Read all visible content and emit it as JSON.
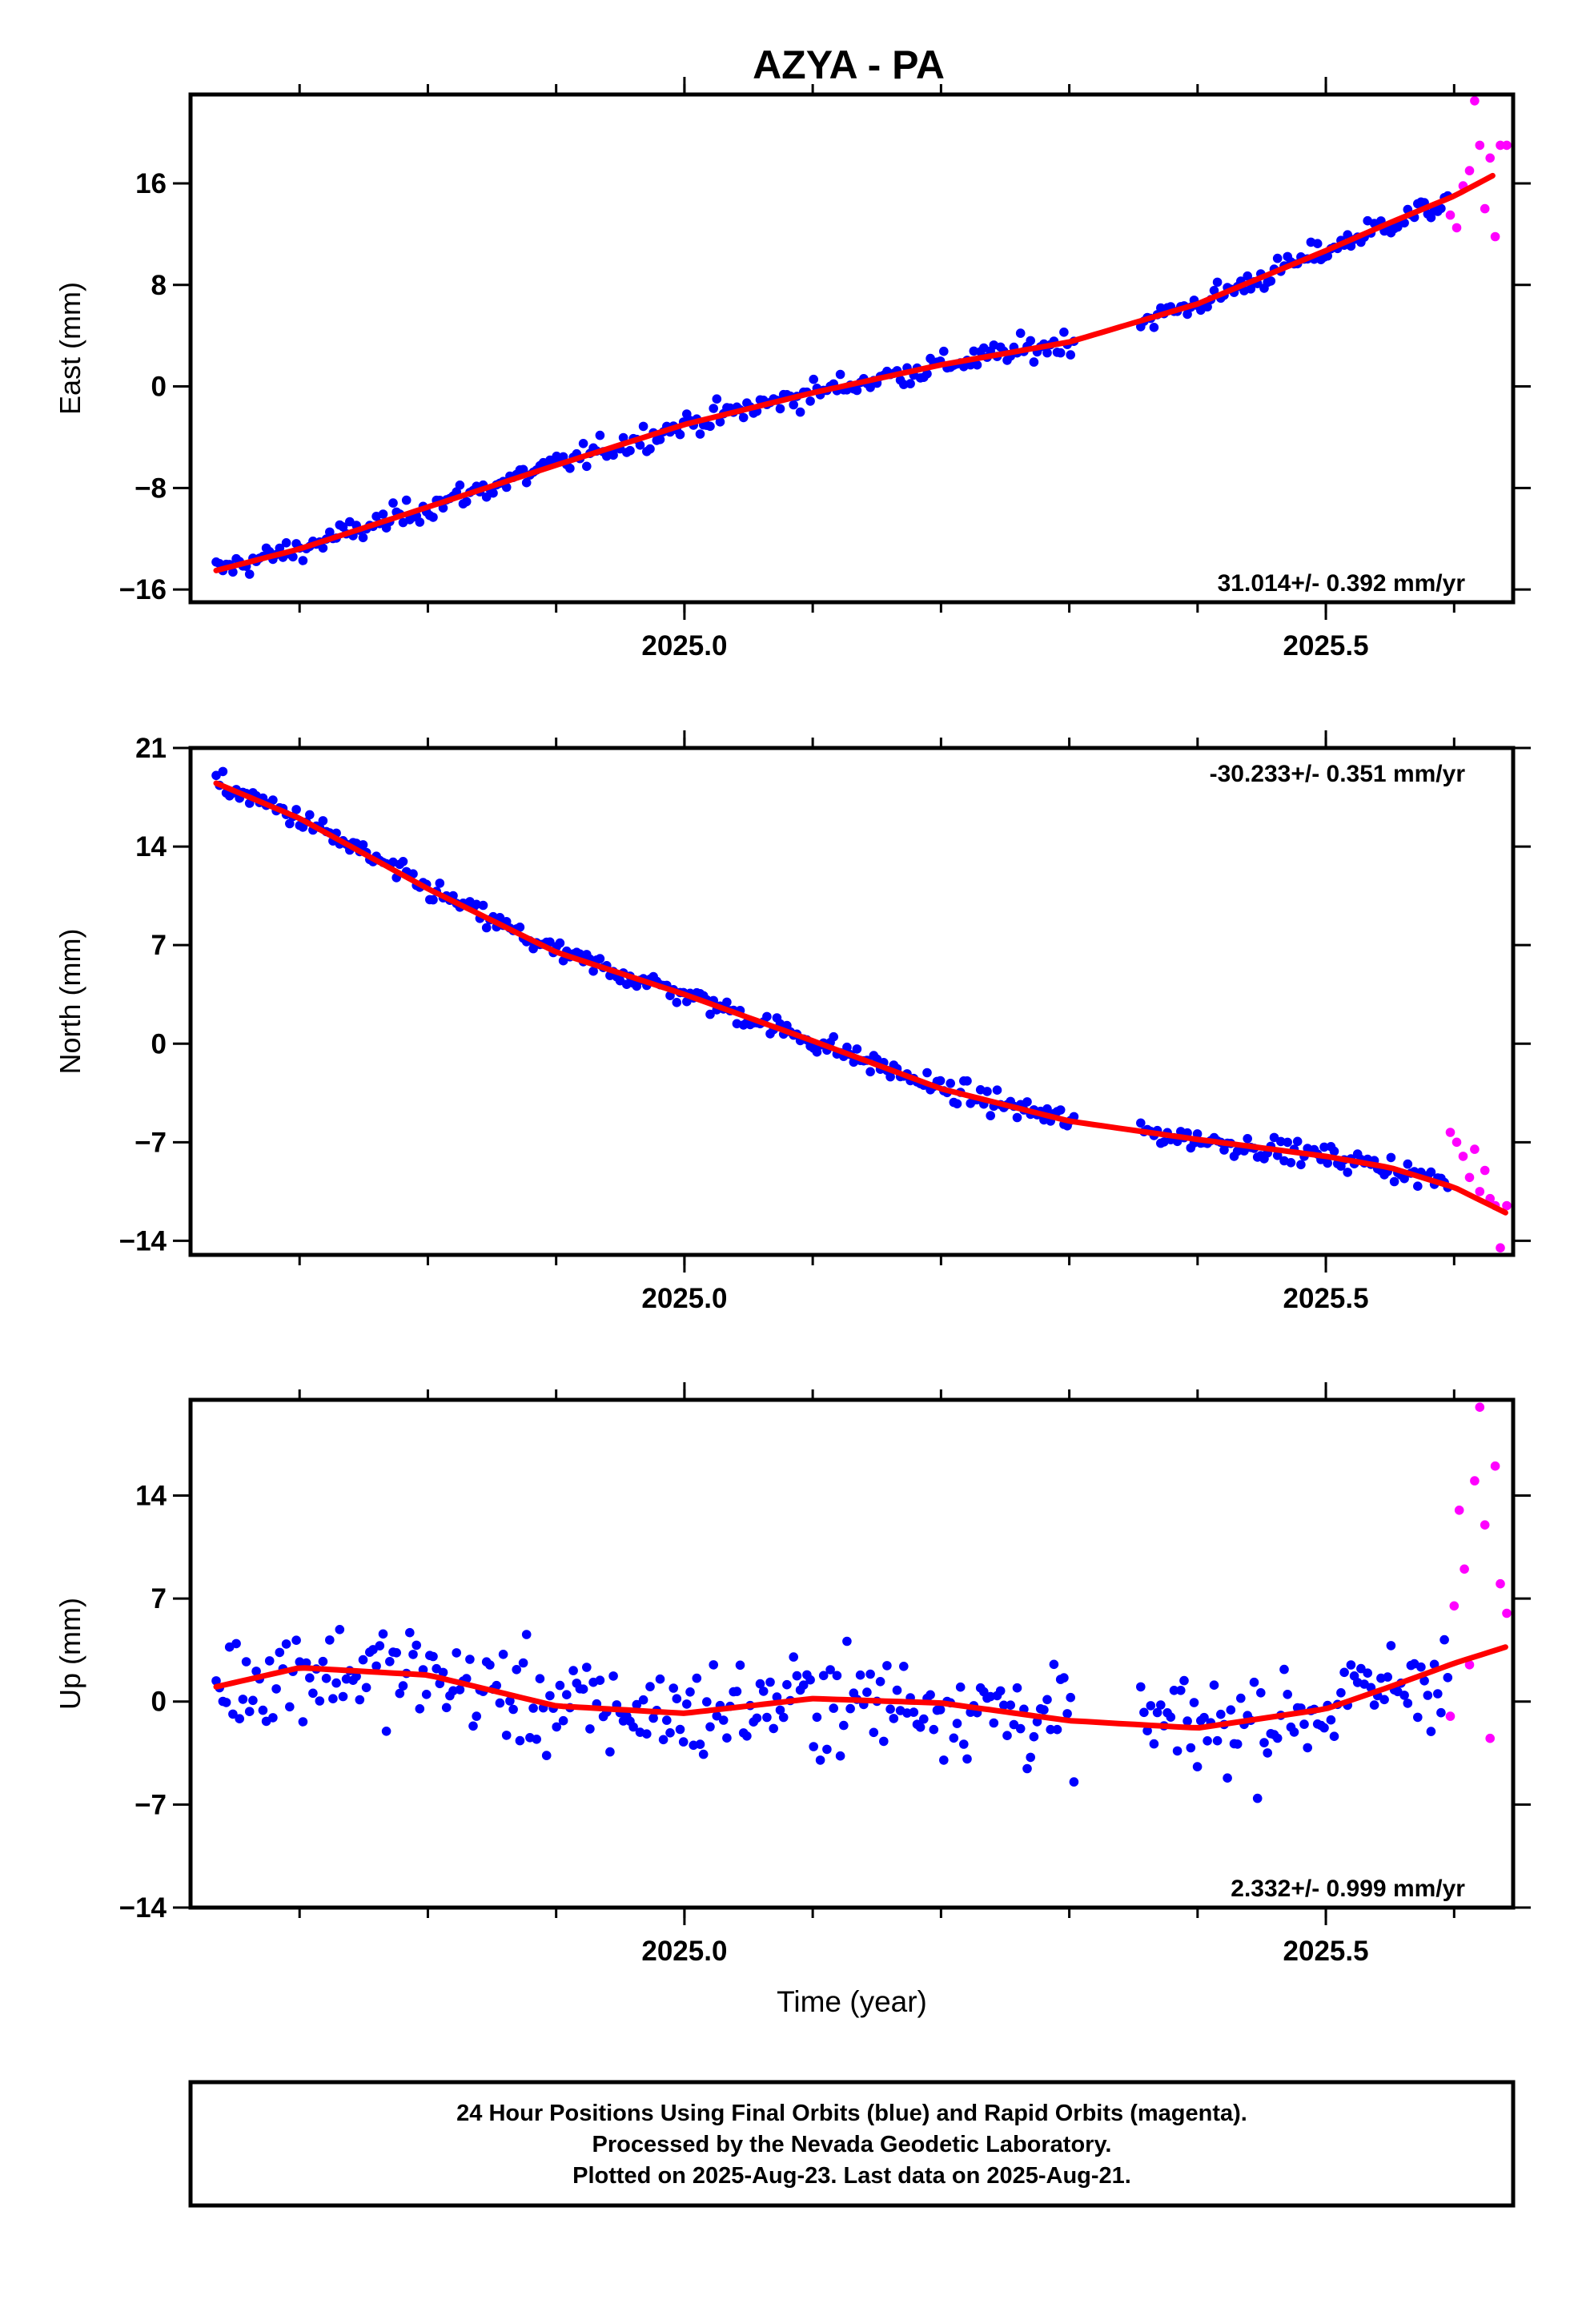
{
  "title": "AZYA - PA",
  "colors": {
    "final": "#0000ff",
    "rapid": "#ff00ff",
    "fit": "#ff0000",
    "frame": "#000000"
  },
  "chart_data": [
    {
      "type": "scatter",
      "component": "East",
      "ylabel": "East (mm)",
      "xlabel": "",
      "xlim": [
        2024.615,
        2025.646
      ],
      "ylim": [
        -17.0,
        23.0
      ],
      "yticks": [
        -16,
        -8,
        0,
        8,
        16
      ],
      "ytick_labels": [
        "−16",
        "−8",
        "0",
        "8",
        "16"
      ],
      "xticks": [
        2025.0,
        2025.5
      ],
      "xtick_labels": [
        "2025.0",
        "2025.5"
      ],
      "rate_label": "31.014+/- 0.392 mm/yr",
      "rate_position": "bottom-right",
      "fit": {
        "x": [
          2024.635,
          2024.7,
          2024.8,
          2024.9,
          2025.0,
          2025.1,
          2025.2,
          2025.3,
          2025.4,
          2025.5,
          2025.55,
          2025.6,
          2025.63
        ],
        "y": [
          -14.5,
          -12.8,
          -9.5,
          -6.2,
          -3.0,
          -0.5,
          1.7,
          3.5,
          6.5,
          10.7,
          12.9,
          15.0,
          16.6
        ]
      },
      "final_anchors": {
        "x": [
          2024.635,
          2024.7,
          2024.8,
          2024.9,
          2025.0,
          2025.1,
          2025.2,
          2025.3,
          2025.4,
          2025.5,
          2025.55,
          2025.595
        ],
        "y": [
          -14.5,
          -12.8,
          -9.5,
          -6.2,
          -3.0,
          -0.5,
          1.7,
          3.5,
          6.5,
          10.7,
          12.9,
          14.5
        ]
      },
      "final_noise": 1.0,
      "rapid": {
        "x": [
          2025.597,
          2025.602,
          2025.607,
          2025.612,
          2025.616,
          2025.62,
          2025.624,
          2025.628,
          2025.632,
          2025.636,
          2025.641
        ],
        "y": [
          13.5,
          12.5,
          15.8,
          17.0,
          22.5,
          19.0,
          14.0,
          18.0,
          11.8,
          19.0,
          19.0
        ]
      }
    },
    {
      "type": "scatter",
      "component": "North",
      "ylabel": "North (mm)",
      "xlabel": "",
      "xlim": [
        2024.615,
        2025.646
      ],
      "ylim": [
        -15.0,
        21.0
      ],
      "yticks": [
        -14,
        -7,
        0,
        7,
        14,
        21
      ],
      "ytick_labels": [
        "−14",
        "−7",
        "0",
        "7",
        "14",
        "21"
      ],
      "xticks": [
        2025.0,
        2025.5
      ],
      "xtick_labels": [
        "2025.0",
        "2025.5"
      ],
      "rate_label": "-30.233+/- 0.351 mm/yr",
      "rate_position": "top-right",
      "fit": {
        "x": [
          2024.635,
          2024.7,
          2024.8,
          2024.9,
          2025.0,
          2025.1,
          2025.2,
          2025.3,
          2025.4,
          2025.5,
          2025.55,
          2025.6,
          2025.64
        ],
        "y": [
          18.5,
          16.0,
          11.0,
          6.5,
          3.5,
          0.2,
          -3.2,
          -5.5,
          -6.8,
          -8.0,
          -8.8,
          -10.2,
          -12.0
        ]
      },
      "final_anchors": {
        "x": [
          2024.635,
          2024.7,
          2024.8,
          2024.9,
          2025.0,
          2025.1,
          2025.2,
          2025.3,
          2025.4,
          2025.5,
          2025.55,
          2025.595
        ],
        "y": [
          18.5,
          16.0,
          11.0,
          6.5,
          3.5,
          0.2,
          -3.2,
          -5.5,
          -6.8,
          -8.0,
          -8.8,
          -10.0
        ]
      },
      "final_noise": 0.8,
      "rapid": {
        "x": [
          2025.597,
          2025.602,
          2025.607,
          2025.612,
          2025.616,
          2025.62,
          2025.624,
          2025.628,
          2025.632,
          2025.636,
          2025.641
        ],
        "y": [
          -6.3,
          -7.0,
          -8.0,
          -9.5,
          -7.5,
          -10.5,
          -9.0,
          -11.0,
          -11.5,
          -14.5,
          -11.5
        ]
      }
    },
    {
      "type": "scatter",
      "component": "Up",
      "ylabel": "Up (mm)",
      "xlabel": "Time (year)",
      "xlim": [
        2024.615,
        2025.646
      ],
      "ylim": [
        -14.0,
        20.5
      ],
      "yticks": [
        -14,
        -7,
        0,
        7,
        14
      ],
      "ytick_labels": [
        "−14",
        "−7",
        "0",
        "7",
        "14"
      ],
      "xticks": [
        2025.0,
        2025.5
      ],
      "xtick_labels": [
        "2025.0",
        "2025.5"
      ],
      "rate_label": "2.332+/- 0.999 mm/yr",
      "rate_position": "bottom-right",
      "fit": {
        "x": [
          2024.635,
          2024.7,
          2024.8,
          2024.9,
          2025.0,
          2025.1,
          2025.2,
          2025.3,
          2025.4,
          2025.5,
          2025.55,
          2025.6,
          2025.64
        ],
        "y": [
          1.0,
          2.3,
          1.8,
          -0.3,
          -0.8,
          0.2,
          -0.1,
          -1.3,
          -1.8,
          -0.5,
          1.0,
          2.6,
          3.7
        ]
      },
      "final_anchors": {
        "x": [
          2024.635,
          2024.7,
          2024.8,
          2024.9,
          2025.0,
          2025.1,
          2025.2,
          2025.3,
          2025.4,
          2025.5,
          2025.55,
          2025.595
        ],
        "y": [
          1.0,
          2.3,
          1.8,
          -0.3,
          -0.8,
          0.2,
          -0.1,
          -1.3,
          -1.8,
          -0.5,
          1.0,
          2.3
        ]
      },
      "final_noise": 3.4,
      "rapid": {
        "x": [
          2025.597,
          2025.6,
          2025.604,
          2025.608,
          2025.612,
          2025.616,
          2025.62,
          2025.624,
          2025.628,
          2025.632,
          2025.636,
          2025.641
        ],
        "y": [
          -1.0,
          6.5,
          13.0,
          9.0,
          2.5,
          15.0,
          20.0,
          12.0,
          -2.5,
          16.0,
          8.0,
          6.0
        ]
      }
    }
  ],
  "footer": {
    "line1": "24 Hour Positions Using Final Orbits (blue) and Rapid Orbits (magenta).",
    "line2": "Processed by the Nevada Geodetic Laboratory.",
    "line3": "Plotted on 2025-Aug-23. Last data on 2025-Aug-21."
  }
}
